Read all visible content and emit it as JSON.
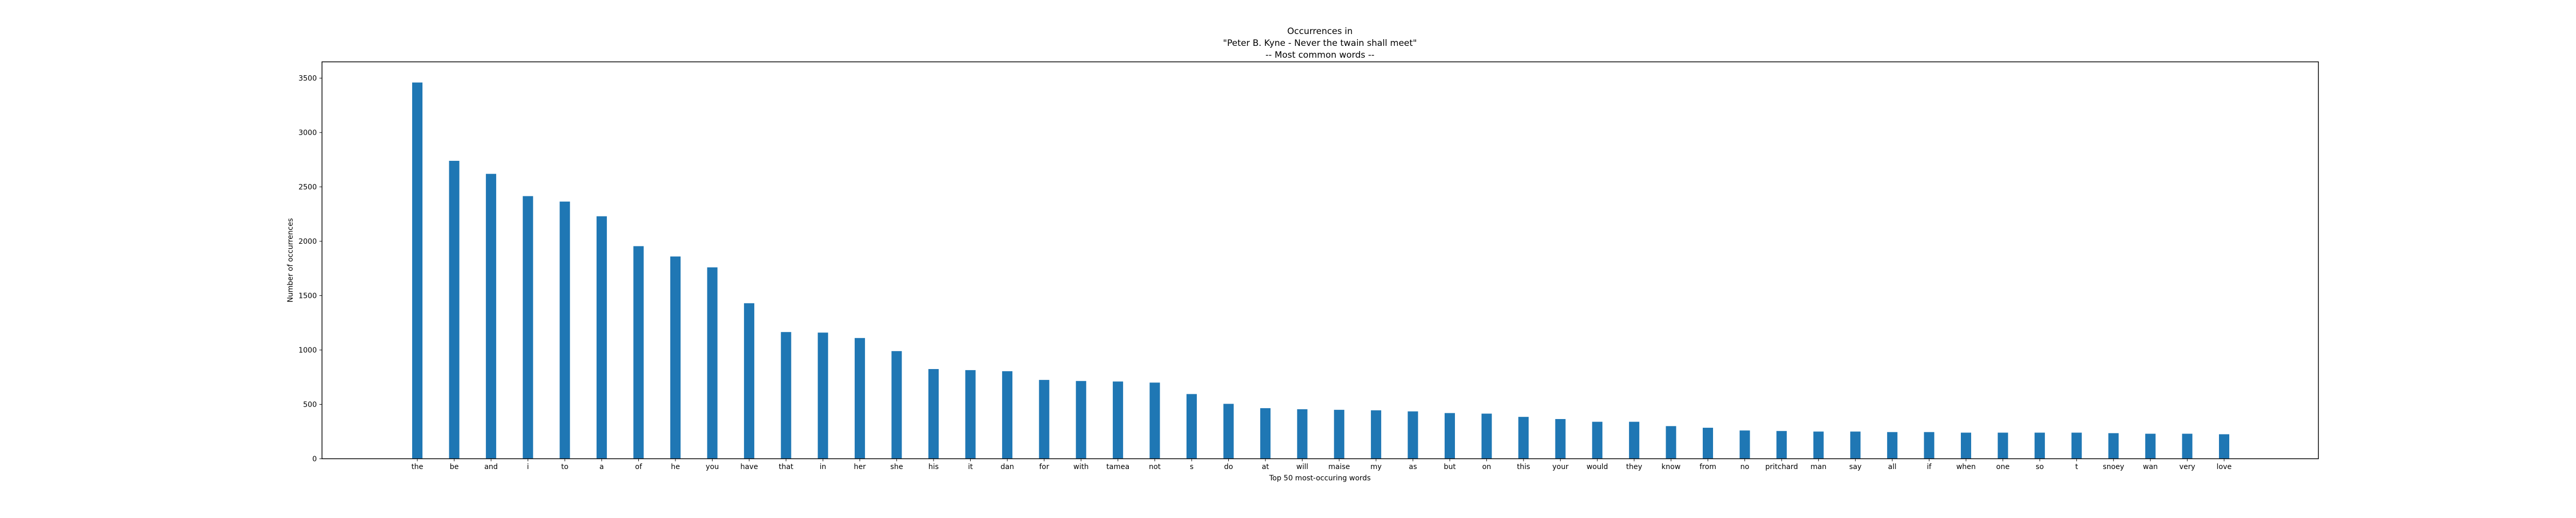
{
  "chart_data": {
    "type": "bar",
    "title_lines": [
      "Occurrences in",
      "\"Peter B. Kyne - Never the twain shall meet\"",
      "-- Most common words --"
    ],
    "xlabel": "Top 50 most-occuring words",
    "ylabel": "Number of occurrences",
    "ylim": [
      0,
      3650
    ],
    "yticks": [
      0,
      500,
      1000,
      1500,
      2000,
      2500,
      3000,
      3500
    ],
    "grid": false,
    "legend": "none",
    "bar_color": "#1f77b4",
    "categories": [
      "the",
      "be",
      "and",
      "i",
      "to",
      "a",
      "of",
      "he",
      "you",
      "have",
      "that",
      "in",
      "her",
      "she",
      "his",
      "it",
      "dan",
      "for",
      "with",
      "tamea",
      "not",
      "s",
      "do",
      "at",
      "will",
      "maise",
      "my",
      "as",
      "but",
      "on",
      "this",
      "your",
      "would",
      "they",
      "know",
      "from",
      "no",
      "pritchard",
      "man",
      "say",
      "all",
      "if",
      "when",
      "one",
      "so",
      "t",
      "snoey",
      "wan",
      "very",
      "love"
    ],
    "values": [
      3460,
      2740,
      2620,
      2415,
      2365,
      2230,
      1955,
      1860,
      1760,
      1430,
      1165,
      1160,
      1110,
      990,
      825,
      815,
      805,
      725,
      715,
      710,
      700,
      595,
      505,
      465,
      455,
      450,
      445,
      435,
      420,
      415,
      385,
      365,
      340,
      340,
      300,
      285,
      260,
      255,
      250,
      250,
      245,
      245,
      240,
      240,
      240,
      240,
      235,
      230,
      230,
      225
    ]
  }
}
